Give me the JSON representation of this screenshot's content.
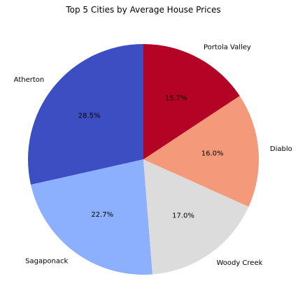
{
  "chart_data": {
    "type": "pie",
    "title": "Top 5 Cities by Average House Prices",
    "categories": [
      "Atherton",
      "Sagaponack",
      "Woody Creek",
      "Diablo",
      "Portola Valley"
    ],
    "values": [
      28.5,
      22.7,
      17.0,
      16.0,
      15.7
    ],
    "percent_labels": [
      "28.5%",
      "22.7%",
      "17.0%",
      "16.0%",
      "15.7%"
    ],
    "colors": [
      "#3c4ec2",
      "#8caffe",
      "#dddcdc",
      "#f49a7b",
      "#b40426"
    ],
    "start_angle_deg": 90,
    "direction": "counterclockwise",
    "legend": "none"
  }
}
